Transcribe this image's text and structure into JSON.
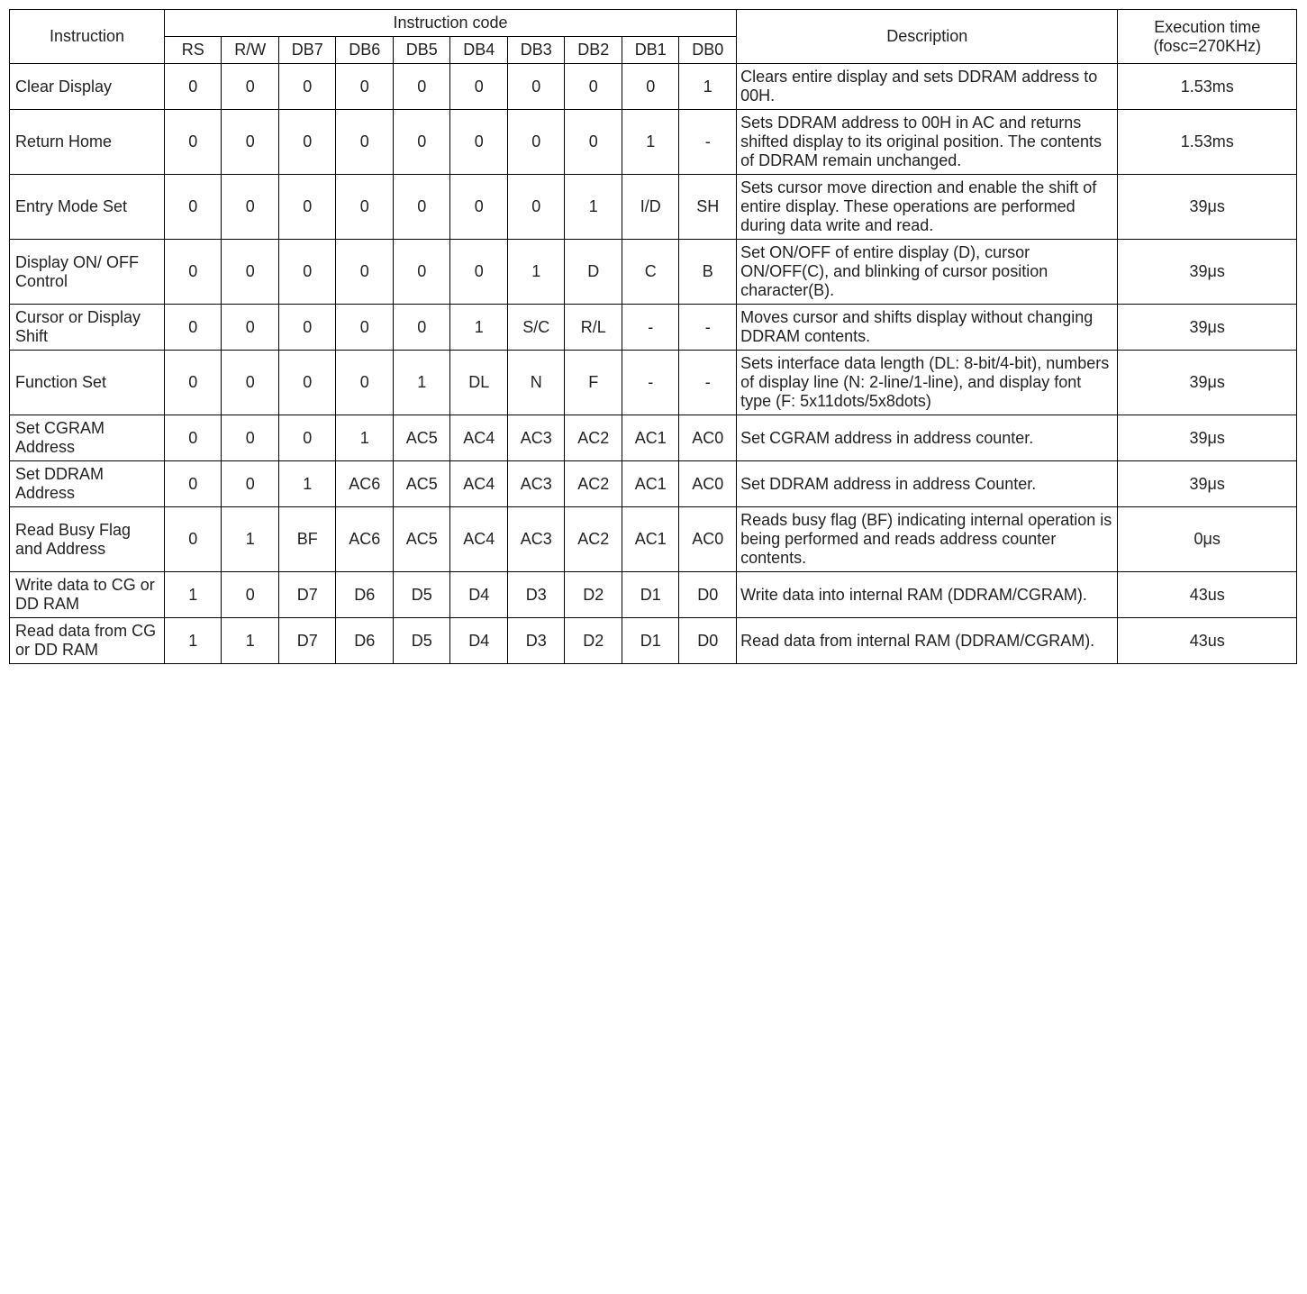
{
  "headers": {
    "instruction": "Instruction",
    "instruction_code": "Instruction code",
    "description": "Description",
    "execution_time": "Execution time (fosc=270KHz)",
    "code_cols": [
      "RS",
      "R/W",
      "DB7",
      "DB6",
      "DB5",
      "DB4",
      "DB3",
      "DB2",
      "DB1",
      "DB0"
    ]
  },
  "rows": [
    {
      "instruction": "Clear Display",
      "code": [
        "0",
        "0",
        "0",
        "0",
        "0",
        "0",
        "0",
        "0",
        "0",
        "1"
      ],
      "description": "Clears entire display and sets DDRAM address to 00H.",
      "time": "1.53ms"
    },
    {
      "instruction": "Return Home",
      "code": [
        "0",
        "0",
        "0",
        "0",
        "0",
        "0",
        "0",
        "0",
        "1",
        "-"
      ],
      "description": "Sets DDRAM address to 00H in AC and returns shifted display to its original position. The contents of DDRAM remain unchanged.",
      "time": "1.53ms"
    },
    {
      "instruction": "Entry Mode Set",
      "code": [
        "0",
        "0",
        "0",
        "0",
        "0",
        "0",
        "0",
        "1",
        "I/D",
        "SH"
      ],
      "description": "Sets cursor move direction and enable the shift of entire display. These operations are performed during data write and read.",
      "time": "39μs"
    },
    {
      "instruction": "Display ON/ OFF Control",
      "code": [
        "0",
        "0",
        "0",
        "0",
        "0",
        "0",
        "1",
        "D",
        "C",
        "B"
      ],
      "description": "Set ON/OFF of entire display (D), cursor ON/OFF(C), and blinking of cursor position character(B).",
      "time": "39μs"
    },
    {
      "instruction": "Cursor or Display Shift",
      "code": [
        "0",
        "0",
        "0",
        "0",
        "0",
        "1",
        "S/C",
        "R/L",
        "-",
        "-"
      ],
      "description": "Moves cursor and shifts display without changing DDRAM contents.",
      "justify": true,
      "time": "39μs"
    },
    {
      "instruction": "Function Set",
      "code": [
        "0",
        "0",
        "0",
        "0",
        "1",
        "DL",
        "N",
        "F",
        "-",
        "-"
      ],
      "description": "Sets interface data length (DL: 8-bit/4-bit), numbers of display line (N: 2-line/1-line), and display font type (F: 5x11dots/5x8dots)",
      "time": "39μs"
    },
    {
      "instruction": "Set CGRAM Address",
      "code": [
        "0",
        "0",
        "0",
        "1",
        "AC5",
        "AC4",
        "AC3",
        "AC2",
        "AC1",
        "AC0"
      ],
      "description": "Set CGRAM address in address counter.",
      "time": "39μs"
    },
    {
      "instruction": "Set DDRAM Address",
      "code": [
        "0",
        "0",
        "1",
        "AC6",
        "AC5",
        "AC4",
        "AC3",
        "AC2",
        "AC1",
        "AC0"
      ],
      "description": "Set DDRAM address in address Counter.",
      "time": "39μs"
    },
    {
      "instruction": "Read Busy Flag and Address",
      "code": [
        "0",
        "1",
        "BF",
        "AC6",
        "AC5",
        "AC4",
        "AC3",
        "AC2",
        "AC1",
        "AC0"
      ],
      "description": "Reads busy flag (BF) indicating internal operation is being performed and reads address counter contents.",
      "time": "0μs"
    },
    {
      "instruction": "Write data to CG or DD RAM",
      "justify_instr": true,
      "code": [
        "1",
        "0",
        "D7",
        "D6",
        "D5",
        "D4",
        "D3",
        "D2",
        "D1",
        "D0"
      ],
      "description": "Write data into internal RAM (DDRAM/CGRAM).",
      "time": "43us"
    },
    {
      "instruction": "Read data from CG or DD RAM",
      "justify_instr": true,
      "code": [
        "1",
        "1",
        "D7",
        "D6",
        "D5",
        "D4",
        "D3",
        "D2",
        "D1",
        "D0"
      ],
      "description": "Read data from internal RAM (DDRAM/CGRAM).",
      "time": "43us"
    }
  ]
}
